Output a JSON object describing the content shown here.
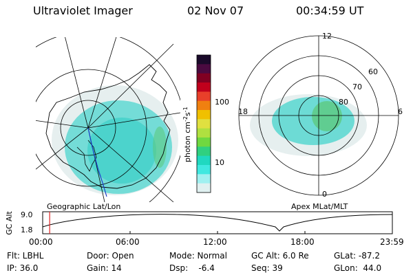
{
  "header": {
    "title": "Ultraviolet Imager",
    "date": "02 Nov 07",
    "time": "00:34:59 UT"
  },
  "colorbar": {
    "unit": "photon cm",
    "unit_exp1": "-2",
    "unit_mid": "s",
    "unit_exp2": "-1",
    "ticks": [
      "100",
      "10"
    ],
    "colors": [
      "#1a0a2a",
      "#4a0a40",
      "#800022",
      "#c0001c",
      "#e8402a",
      "#f08010",
      "#f0c000",
      "#e0e040",
      "#b0e040",
      "#70d840",
      "#30d080",
      "#20d8c0",
      "#40e8e0",
      "#a0f0f0",
      "#e0f0f0"
    ]
  },
  "geo_panel": {
    "caption": "Geographic Lat/Lon"
  },
  "apex_panel": {
    "caption": "Apex MLat/MLT",
    "mlt_labels": {
      "top": "12",
      "left": "18",
      "right": "6",
      "bottom": "0"
    },
    "lat_labels": [
      "60",
      "70",
      "80"
    ]
  },
  "timeline": {
    "ylabel": "GC Alt",
    "yticks": [
      "9.0",
      "1.8"
    ],
    "xticks": [
      "00:00",
      "06:00",
      "12:00",
      "18:00",
      "23:59"
    ],
    "marker_fraction": 0.02
  },
  "footer": {
    "flt": "Flt: LBHL",
    "door": "Door: Open",
    "mode": "Mode: Normal",
    "gc_alt": "GC Alt: 6.0 Re",
    "glat": "GLat: -87.2",
    "ip": "IP: 36.0",
    "gain": "Gain: 14",
    "dsp": "Dsp:    -6.4",
    "seq": "Seq: 39",
    "glon": "GLon:  44.0"
  }
}
